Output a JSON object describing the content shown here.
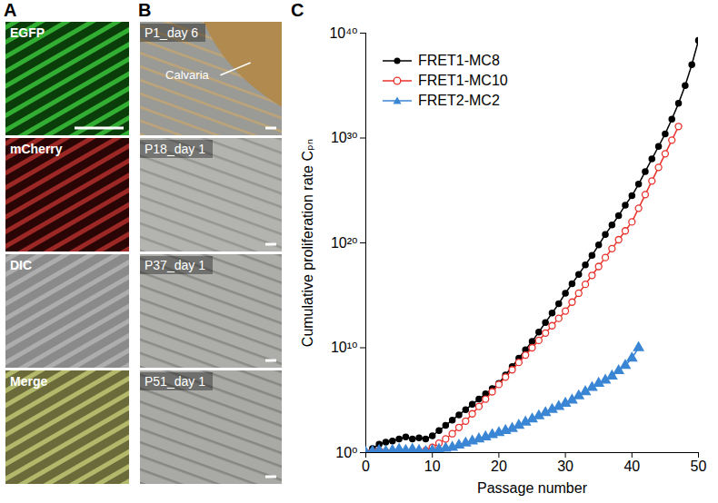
{
  "panels": [
    {
      "letter": "A",
      "images": [
        "EGFP",
        "mCherry",
        "DIC",
        "Merge"
      ]
    },
    {
      "letter": "B",
      "images": [
        "P1_day 6",
        "P18_day 1",
        "P37_day 1",
        "P51_day 1"
      ],
      "annotation": "Calvaria"
    },
    {
      "letter": "C"
    }
  ],
  "chart_data": {
    "type": "line",
    "x_label": "Passage number",
    "y_label": "Cumulative proliferation rate Cₚₙ",
    "log": "y",
    "grid": false,
    "legend": "top-left",
    "x": [
      0,
      1,
      2,
      3,
      4,
      5,
      6,
      7,
      8,
      9,
      10,
      11,
      12,
      13,
      14,
      15,
      16,
      17,
      18,
      19,
      20,
      21,
      22,
      23,
      24,
      25,
      26,
      27,
      28,
      29,
      30,
      31,
      32,
      33,
      34,
      35,
      36,
      37,
      38,
      39,
      40,
      41,
      42,
      43,
      44,
      45,
      46,
      47,
      48,
      49,
      50
    ],
    "xlim": [
      0,
      50
    ],
    "xticks": [
      0,
      10,
      20,
      30,
      40,
      50
    ],
    "ylim": [
      1,
      1e+40
    ],
    "yticks": [
      {
        "value": 1,
        "label": "10⁰"
      },
      {
        "value": 10000000000.0,
        "label": "10¹⁰"
      },
      {
        "value": 1e+20,
        "label": "10²⁰"
      },
      {
        "value": 1e+30,
        "label": "10³⁰"
      },
      {
        "value": 1e+40,
        "label": "10⁴⁰"
      }
    ],
    "series": [
      {
        "name": "FRET1-MC8",
        "color": "#000000",
        "marker": "circle",
        "line_style": "solid",
        "values": [
          1,
          2.5,
          6.3,
          10,
          12.6,
          20,
          31.6,
          20,
          25,
          20,
          40,
          126,
          398,
          1260,
          3980,
          12600.0,
          39800.0,
          126000.0,
          398000.0,
          1260000.0,
          3980000.0,
          25100000.0,
          158000000.0,
          1000000000.0,
          6310000000.0,
          39800000000.0,
          316000000000.0,
          2510000000000.0,
          20000000000000.0,
          158000000000000.0,
          1580000000000000.0,
          1.26e+16,
          1e+17,
          7.94e+17,
          6.31e+18,
          6.31e+19,
          6.31e+20,
          5.01e+21,
          3.98e+22,
          3.98e+23,
          3.16e+24,
          3.98e+25,
          6.31e+26,
          1e+28,
          1.58e+29,
          2.51e+30,
          6.31e+31,
          2e+33,
          1e+35,
          1e+37,
          2e+39
        ]
      },
      {
        "name": "FRET1-MC10",
        "color": "#e8312a",
        "marker": "open_circle",
        "line_style": "solid",
        "values": [
          1,
          1.26,
          1.58,
          1.26,
          1,
          1,
          1,
          1.26,
          1,
          1.58,
          3.16,
          7.94,
          20,
          63.1,
          251,
          1000,
          5010,
          25100.0,
          126000.0,
          631000.0,
          3160000.0,
          15800000.0,
          79400000.0,
          398000000.0,
          2000000000.0,
          10000000000.0,
          50100000000.0,
          251000000000.0,
          1260000000000.0,
          6310000000000.0,
          31600000000000.0,
          224000000000000.0,
          1580000000000000.0,
          1.12e+16,
          7.94e+16,
          5.62e+17,
          3.98e+18,
          2.82e+19,
          2e+20,
          1.41e+21,
          1e+22,
          2e+23,
          3.98e+24,
          7.94e+25,
          1.58e+27,
          3.16e+28,
          6.31e+29,
          1.26e+31,
          null,
          null,
          null
        ]
      },
      {
        "name": "FRET2-MC2",
        "color": "#3a86d4",
        "marker": "triangle",
        "line_style": "solid",
        "values": [
          1,
          1.26,
          1.58,
          1.26,
          1.58,
          2,
          1.58,
          2,
          1.58,
          1.26,
          1.58,
          2,
          2.51,
          3.16,
          5.01,
          7.94,
          12.6,
          20,
          31.6,
          50.1,
          79.4,
          126,
          200,
          398,
          794,
          1580,
          3160,
          6310,
          12600.0,
          25100.0,
          50100.0,
          100000.0,
          251000.0,
          631000.0,
          1580000.0,
          3980000.0,
          7940000.0,
          20000000.0,
          63100000.0,
          200000000.0,
          1000000000.0,
          10000000000.0,
          null,
          null,
          null,
          null,
          null,
          null,
          null,
          null,
          null
        ]
      }
    ]
  }
}
